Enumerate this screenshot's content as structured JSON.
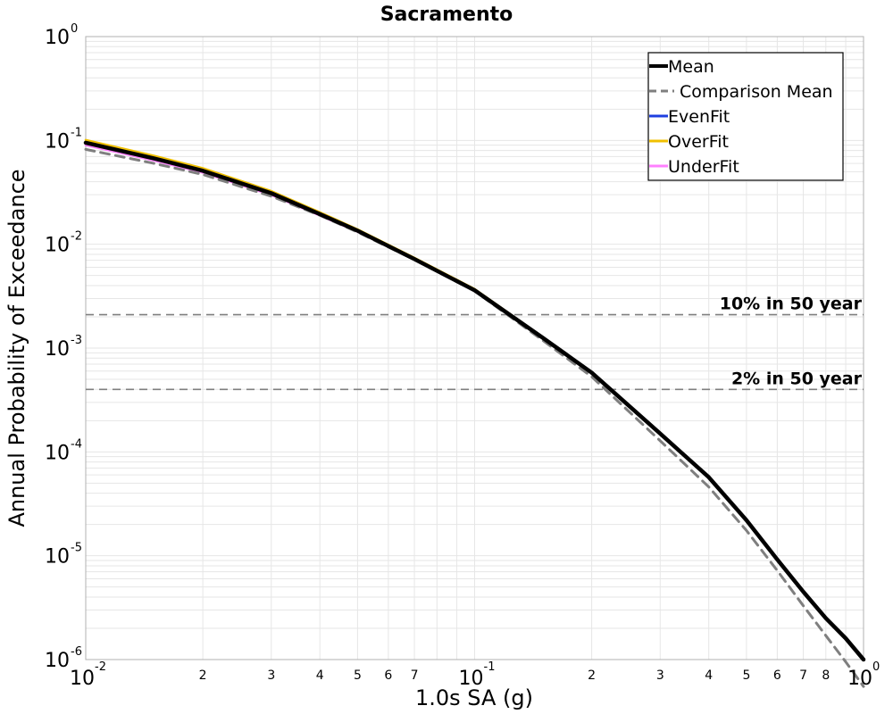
{
  "chart_data": {
    "type": "line",
    "title": "Sacramento",
    "xlabel": "1.0s SA (g)",
    "ylabel": "Annual Probability of Exceedance",
    "xscale": "log",
    "yscale": "log",
    "xlim": [
      0.01,
      1
    ],
    "ylim": [
      1e-06,
      1
    ],
    "grid": true,
    "legend_position": "top-right",
    "x_ticks": [
      {
        "base": "10",
        "exp": "-2",
        "value": 0.01
      },
      {
        "base": "10",
        "exp": "-1",
        "value": 0.1
      },
      {
        "base": "10",
        "exp": "0",
        "value": 1
      }
    ],
    "x_minor_ticks": [
      {
        "label": "2",
        "value": 0.02
      },
      {
        "label": "3",
        "value": 0.03
      },
      {
        "label": "4",
        "value": 0.04
      },
      {
        "label": "5",
        "value": 0.05
      },
      {
        "label": "6",
        "value": 0.06
      },
      {
        "label": "7",
        "value": 0.07
      },
      {
        "label": "2",
        "value": 0.2
      },
      {
        "label": "3",
        "value": 0.3
      },
      {
        "label": "4",
        "value": 0.4
      },
      {
        "label": "5",
        "value": 0.5
      },
      {
        "label": "6",
        "value": 0.6
      },
      {
        "label": "7",
        "value": 0.7
      },
      {
        "label": "8",
        "value": 0.8
      }
    ],
    "y_ticks": [
      {
        "base": "10",
        "exp": "0",
        "value": 1
      },
      {
        "base": "10",
        "exp": "-1",
        "value": 0.1
      },
      {
        "base": "10",
        "exp": "-2",
        "value": 0.01
      },
      {
        "base": "10",
        "exp": "-3",
        "value": 0.001
      },
      {
        "base": "10",
        "exp": "-4",
        "value": 0.0001
      },
      {
        "base": "10",
        "exp": "-5",
        "value": 1e-05
      },
      {
        "base": "10",
        "exp": "-6",
        "value": 1e-06
      }
    ],
    "x": [
      0.01,
      0.015,
      0.02,
      0.03,
      0.04,
      0.05,
      0.07,
      0.1,
      0.15,
      0.2,
      0.3,
      0.4,
      0.5,
      0.6,
      0.7,
      0.8,
      0.9,
      1.0
    ],
    "series": [
      {
        "name": "Mean",
        "color": "#000000",
        "style": "solid",
        "values": [
          0.095,
          0.067,
          0.051,
          0.031,
          0.0195,
          0.0135,
          0.0072,
          0.0036,
          0.00125,
          0.00058,
          0.00015,
          5.7e-05,
          2.2e-05,
          9.2e-06,
          4.5e-06,
          2.5e-06,
          1.6e-06,
          1e-06
        ]
      },
      {
        "name": "Comparison Mean",
        "color": "#7f7f7f",
        "style": "dashed",
        "values": [
          0.082,
          0.06,
          0.047,
          0.029,
          0.019,
          0.0131,
          0.0071,
          0.00355,
          0.00118,
          0.00053,
          0.000128,
          4.6e-05,
          1.75e-05,
          7.2e-06,
          3.3e-06,
          1.7e-06,
          9.5e-07,
          5.5e-07
        ]
      },
      {
        "name": "EvenFit",
        "color": "#1f3fe0",
        "style": "solid",
        "values": [
          0.095,
          0.067,
          0.051,
          0.031,
          0.0195,
          0.0135,
          0.0072,
          0.0036,
          0.00125,
          0.00058,
          0.00015,
          5.7e-05,
          2.2e-05,
          9.2e-06,
          4.5e-06,
          2.5e-06,
          1.6e-06,
          1e-06
        ]
      },
      {
        "name": "OverFit",
        "color": "#f0c000",
        "style": "solid",
        "values": [
          0.101,
          0.071,
          0.054,
          0.0325,
          0.0203,
          0.0139,
          0.0074,
          0.0037,
          0.00127,
          0.000585,
          0.000151,
          5.75e-05,
          2.22e-05,
          9.3e-06,
          4.6e-06,
          2.5e-06,
          1.6e-06,
          1e-06
        ]
      },
      {
        "name": "UnderFit",
        "color": "#ff80ff",
        "style": "solid",
        "values": [
          0.09,
          0.064,
          0.049,
          0.0298,
          0.0189,
          0.0132,
          0.0071,
          0.00355,
          0.00126,
          0.000585,
          0.000152,
          5.8e-05,
          2.24e-05,
          9.4e-06,
          4.6e-06,
          2.5e-06,
          1.6e-06,
          1e-06
        ]
      }
    ],
    "reference_lines": [
      {
        "label": "10% in 50 year",
        "value": 0.0021,
        "color": "#7f7f7f"
      },
      {
        "label": "2% in 50 year",
        "value": 0.0004,
        "color": "#7f7f7f"
      }
    ],
    "colors": {
      "grid": "#e6e6e6",
      "axis": "#b0b0b0"
    }
  }
}
